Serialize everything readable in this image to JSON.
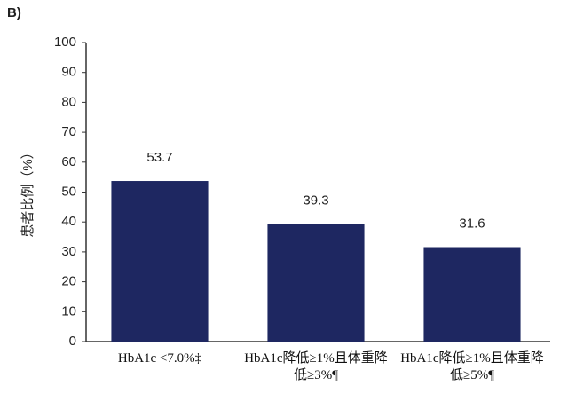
{
  "panel_label": "B)",
  "chart_data": {
    "type": "bar",
    "y_label": "患者比例（%）",
    "categories": [
      "HbA1c <7.0%‡",
      "HbA1c降低≥1%且体重降低≥3%¶",
      "HbA1c降低≥1%且体重降低≥5%¶"
    ],
    "values": [
      53.7,
      39.3,
      31.6
    ],
    "color": "#1e2761",
    "ylim": [
      0,
      100
    ],
    "yticks": [
      0,
      10,
      20,
      30,
      40,
      50,
      60,
      70,
      80,
      90,
      100
    ],
    "grid": false
  }
}
